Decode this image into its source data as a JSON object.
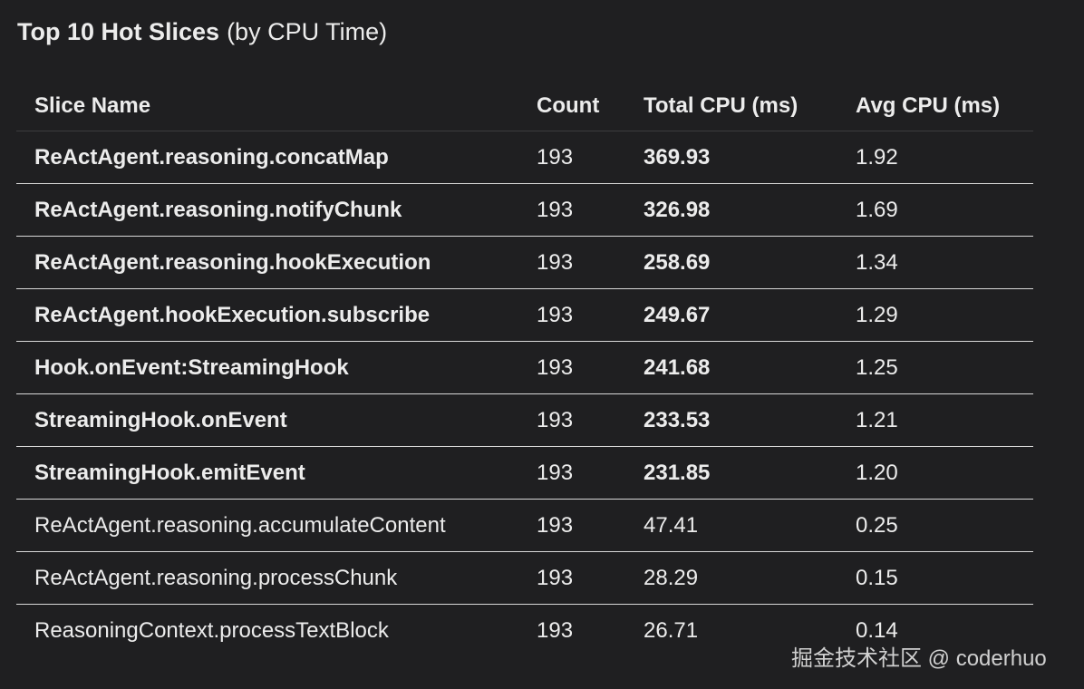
{
  "title": {
    "main": "Top 10 Hot Slices",
    "suffix": "(by CPU Time)"
  },
  "table": {
    "header": [
      "Slice Name",
      "Count",
      "Total CPU (ms)",
      "Avg CPU (ms)"
    ],
    "rows": [
      {
        "cells": [
          "ReActAgent.reasoning.concatMap",
          "193",
          "369.93",
          "1.92"
        ],
        "bold": true
      },
      {
        "cells": [
          "ReActAgent.reasoning.notifyChunk",
          "193",
          "326.98",
          "1.69"
        ],
        "bold": true
      },
      {
        "cells": [
          "ReActAgent.reasoning.hookExecution",
          "193",
          "258.69",
          "1.34"
        ],
        "bold": true
      },
      {
        "cells": [
          "ReActAgent.hookExecution.subscribe",
          "193",
          "249.67",
          "1.29"
        ],
        "bold": true
      },
      {
        "cells": [
          "Hook.onEvent:StreamingHook",
          "193",
          "241.68",
          "1.25"
        ],
        "bold": true
      },
      {
        "cells": [
          "StreamingHook.onEvent",
          "193",
          "233.53",
          "1.21"
        ],
        "bold": true
      },
      {
        "cells": [
          "StreamingHook.emitEvent",
          "193",
          "231.85",
          "1.20"
        ],
        "bold": true
      },
      {
        "cells": [
          "ReActAgent.reasoning.accumulateContent",
          "193",
          "47.41",
          "0.25"
        ],
        "bold": false
      },
      {
        "cells": [
          "ReActAgent.reasoning.processChunk",
          "193",
          "28.29",
          "0.15"
        ],
        "bold": false
      },
      {
        "cells": [
          "ReasoningContext.processTextBlock",
          "193",
          "26.71",
          "0.14"
        ],
        "bold": false
      }
    ]
  },
  "watermark": "掘金技术社区 @ coderhuo"
}
